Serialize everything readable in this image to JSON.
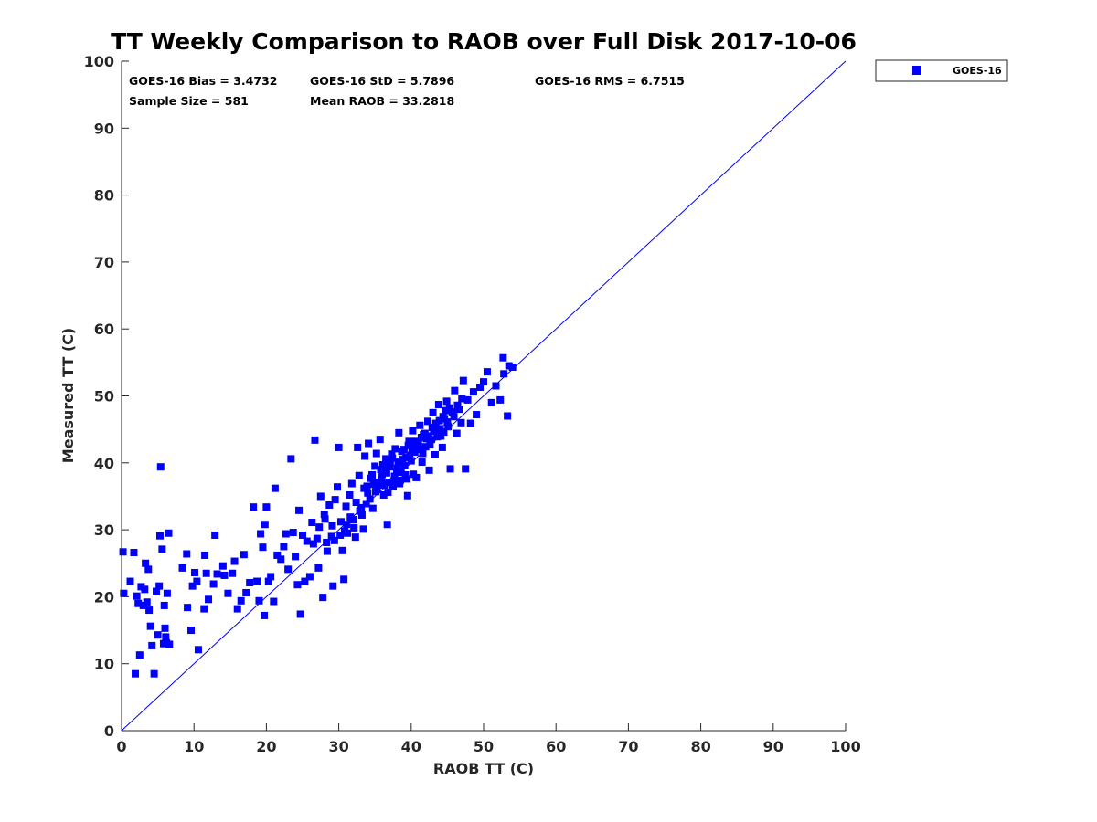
{
  "chart_data": {
    "type": "scatter",
    "title": "TT Weekly Comparison to RAOB over Full Disk 2017-10-06",
    "xlabel": "RAOB TT (C)",
    "ylabel": "Measured TT (C)",
    "xlim": [
      0,
      100
    ],
    "ylim": [
      0,
      100
    ],
    "xticks": [
      0,
      10,
      20,
      30,
      40,
      50,
      60,
      70,
      80,
      90,
      100
    ],
    "yticks": [
      0,
      10,
      20,
      30,
      40,
      50,
      60,
      70,
      80,
      90,
      100
    ],
    "grid": false,
    "legend_position": "outside-top-right",
    "reference_line": {
      "from": [
        0,
        0
      ],
      "to": [
        100,
        100
      ],
      "color": "#0000ff"
    },
    "stats": {
      "bias": "GOES-16 Bias = 3.4732",
      "std": "GOES-16 StD = 5.7896",
      "rms": "GOES-16 RMS = 6.7515",
      "sample_size": "Sample Size = 581",
      "mean_raob": "Mean RAOB = 33.2818"
    },
    "series": [
      {
        "name": "GOES-16",
        "color": "#0000ff",
        "marker": "square",
        "points": [
          [
            0.2,
            26.7
          ],
          [
            0.3,
            20.5
          ],
          [
            1.2,
            22.3
          ],
          [
            1.7,
            26.6
          ],
          [
            1.9,
            8.5
          ],
          [
            2.1,
            20.1
          ],
          [
            2.3,
            19.0
          ],
          [
            2.5,
            11.3
          ],
          [
            2.7,
            21.5
          ],
          [
            3.0,
            18.7
          ],
          [
            3.2,
            21.1
          ],
          [
            3.3,
            25.0
          ],
          [
            3.5,
            19.2
          ],
          [
            3.7,
            24.1
          ],
          [
            3.8,
            18.0
          ],
          [
            4.0,
            15.6
          ],
          [
            4.2,
            12.7
          ],
          [
            4.5,
            8.5
          ],
          [
            4.8,
            20.8
          ],
          [
            5.0,
            14.3
          ],
          [
            5.2,
            21.6
          ],
          [
            5.3,
            29.1
          ],
          [
            5.4,
            39.4
          ],
          [
            5.6,
            27.1
          ],
          [
            5.8,
            13.0
          ],
          [
            5.9,
            18.7
          ],
          [
            6.0,
            15.3
          ],
          [
            6.1,
            14.0
          ],
          [
            6.2,
            13.1
          ],
          [
            6.3,
            20.5
          ],
          [
            6.6,
            12.9
          ],
          [
            6.5,
            29.5
          ],
          [
            8.4,
            24.3
          ],
          [
            9.0,
            26.4
          ],
          [
            9.1,
            18.4
          ],
          [
            9.6,
            15.0
          ],
          [
            9.8,
            21.6
          ],
          [
            10.1,
            23.6
          ],
          [
            10.4,
            22.3
          ],
          [
            10.6,
            12.1
          ],
          [
            11.4,
            18.2
          ],
          [
            11.5,
            26.2
          ],
          [
            11.7,
            23.5
          ],
          [
            12.0,
            19.6
          ],
          [
            12.7,
            21.9
          ],
          [
            12.9,
            29.2
          ],
          [
            13.2,
            23.4
          ],
          [
            14.0,
            24.6
          ],
          [
            14.2,
            23.2
          ],
          [
            14.7,
            20.5
          ],
          [
            15.3,
            23.5
          ],
          [
            15.6,
            25.3
          ],
          [
            16.0,
            18.2
          ],
          [
            16.5,
            19.4
          ],
          [
            16.9,
            26.3
          ],
          [
            17.2,
            20.6
          ],
          [
            17.7,
            22.1
          ],
          [
            18.2,
            33.4
          ],
          [
            18.7,
            22.3
          ],
          [
            19.0,
            19.4
          ],
          [
            19.2,
            29.4
          ],
          [
            19.5,
            27.4
          ],
          [
            19.7,
            17.2
          ],
          [
            19.8,
            30.8
          ],
          [
            20.0,
            33.4
          ],
          [
            20.3,
            22.3
          ],
          [
            20.6,
            23.0
          ],
          [
            21.0,
            19.3
          ],
          [
            21.2,
            36.2
          ],
          [
            21.5,
            26.2
          ],
          [
            22.0,
            25.6
          ],
          [
            22.4,
            27.5
          ],
          [
            22.7,
            29.4
          ],
          [
            23.0,
            24.1
          ],
          [
            23.4,
            40.6
          ],
          [
            23.7,
            29.6
          ],
          [
            24.0,
            26.0
          ],
          [
            24.3,
            21.8
          ],
          [
            24.5,
            32.9
          ],
          [
            24.7,
            17.4
          ],
          [
            25.0,
            29.2
          ],
          [
            25.3,
            22.3
          ],
          [
            25.6,
            28.3
          ],
          [
            26.0,
            23.0
          ],
          [
            26.3,
            31.1
          ],
          [
            26.7,
            43.4
          ],
          [
            27.0,
            28.7
          ],
          [
            27.2,
            24.3
          ],
          [
            27.5,
            35.0
          ],
          [
            27.8,
            19.9
          ],
          [
            28.1,
            31.6
          ],
          [
            28.4,
            26.8
          ],
          [
            28.7,
            33.7
          ],
          [
            29.0,
            29.0
          ],
          [
            29.2,
            21.6
          ],
          [
            29.5,
            34.5
          ],
          [
            29.8,
            36.4
          ],
          [
            30.0,
            42.3
          ],
          [
            30.3,
            31.2
          ],
          [
            30.5,
            26.9
          ],
          [
            30.7,
            22.6
          ],
          [
            31.0,
            33.5
          ],
          [
            31.2,
            29.5
          ],
          [
            31.5,
            35.2
          ],
          [
            31.8,
            36.9
          ],
          [
            32.0,
            31.5
          ],
          [
            32.3,
            28.9
          ],
          [
            32.6,
            42.3
          ],
          [
            32.8,
            38.1
          ],
          [
            33.1,
            33.3
          ],
          [
            33.4,
            30.1
          ],
          [
            33.6,
            41.0
          ],
          [
            33.9,
            36.5
          ],
          [
            34.1,
            42.9
          ],
          [
            34.3,
            34.6
          ],
          [
            34.6,
            38.2
          ],
          [
            34.8,
            36.8
          ],
          [
            35.0,
            39.5
          ],
          [
            35.2,
            41.4
          ],
          [
            35.5,
            37.0
          ],
          [
            35.7,
            43.5
          ],
          [
            36.0,
            38.3
          ],
          [
            36.2,
            35.2
          ],
          [
            36.5,
            40.6
          ],
          [
            36.7,
            30.8
          ],
          [
            37.0,
            39.4
          ],
          [
            37.3,
            41.3
          ],
          [
            37.5,
            36.5
          ],
          [
            37.8,
            42.1
          ],
          [
            38.0,
            38.8
          ],
          [
            38.3,
            44.5
          ],
          [
            38.5,
            37.4
          ],
          [
            38.8,
            40.5
          ],
          [
            39.0,
            42.0
          ],
          [
            39.2,
            38.2
          ],
          [
            39.5,
            35.1
          ],
          [
            39.7,
            43.2
          ],
          [
            40.0,
            40.3
          ],
          [
            40.2,
            44.8
          ],
          [
            40.5,
            41.6
          ],
          [
            40.7,
            37.8
          ],
          [
            41.0,
            43.0
          ],
          [
            41.2,
            45.6
          ],
          [
            41.5,
            40.1
          ],
          [
            41.7,
            44.2
          ],
          [
            42.0,
            42.4
          ],
          [
            42.3,
            46.2
          ],
          [
            42.5,
            38.9
          ],
          [
            42.8,
            43.5
          ],
          [
            43.0,
            47.5
          ],
          [
            43.3,
            41.2
          ],
          [
            43.6,
            45.0
          ],
          [
            43.8,
            48.7
          ],
          [
            44.1,
            44.0
          ],
          [
            44.3,
            42.3
          ],
          [
            44.6,
            46.6
          ],
          [
            44.9,
            49.2
          ],
          [
            45.1,
            45.4
          ],
          [
            45.4,
            39.1
          ],
          [
            45.7,
            47.6
          ],
          [
            46.0,
            50.8
          ],
          [
            46.3,
            44.4
          ],
          [
            46.6,
            48.0
          ],
          [
            46.9,
            46.0
          ],
          [
            47.2,
            52.3
          ],
          [
            47.5,
            39.1
          ],
          [
            47.8,
            49.4
          ],
          [
            48.2,
            45.9
          ],
          [
            48.6,
            50.6
          ],
          [
            49.0,
            47.2
          ],
          [
            49.5,
            51.3
          ],
          [
            50.0,
            52.1
          ],
          [
            50.5,
            53.6
          ],
          [
            51.1,
            49.0
          ],
          [
            51.7,
            51.5
          ],
          [
            52.3,
            49.4
          ],
          [
            52.8,
            53.3
          ],
          [
            52.7,
            55.7
          ],
          [
            53.3,
            47.0
          ],
          [
            53.5,
            54.5
          ],
          [
            54.0,
            54.3
          ],
          [
            28.0,
            32.3
          ],
          [
            29.1,
            30.6
          ],
          [
            30.8,
            29.8
          ],
          [
            31.6,
            31.9
          ],
          [
            32.4,
            34.1
          ],
          [
            33.2,
            32.2
          ],
          [
            34.0,
            35.5
          ],
          [
            34.9,
            37.1
          ],
          [
            35.3,
            36.0
          ],
          [
            35.9,
            37.6
          ],
          [
            36.6,
            38.5
          ],
          [
            37.1,
            39.9
          ],
          [
            37.7,
            38.0
          ],
          [
            38.2,
            40.1
          ],
          [
            38.7,
            41.7
          ],
          [
            39.3,
            40.8
          ],
          [
            39.8,
            41.1
          ],
          [
            40.4,
            42.4
          ],
          [
            40.9,
            42.9
          ],
          [
            41.4,
            43.8
          ],
          [
            41.9,
            44.4
          ],
          [
            42.4,
            44.0
          ],
          [
            42.9,
            45.3
          ],
          [
            43.4,
            45.9
          ],
          [
            43.9,
            46.3
          ],
          [
            44.4,
            46.9
          ],
          [
            44.8,
            47.8
          ],
          [
            45.3,
            48.2
          ],
          [
            45.9,
            46.9
          ],
          [
            46.4,
            48.6
          ],
          [
            47.0,
            49.6
          ],
          [
            36.1,
            39.7
          ],
          [
            36.9,
            37.1
          ],
          [
            37.4,
            40.7
          ],
          [
            38.1,
            39.2
          ],
          [
            38.6,
            38.6
          ],
          [
            39.1,
            39.6
          ],
          [
            39.6,
            42.6
          ],
          [
            40.1,
            41.9
          ],
          [
            40.6,
            43.2
          ],
          [
            41.1,
            42.0
          ],
          [
            41.6,
            41.4
          ],
          [
            42.1,
            43.6
          ],
          [
            42.6,
            42.7
          ],
          [
            43.1,
            44.7
          ],
          [
            43.6,
            43.9
          ],
          [
            44.0,
            45.1
          ],
          [
            44.5,
            44.6
          ],
          [
            45.0,
            46.1
          ],
          [
            33.5,
            36.2
          ],
          [
            34.4,
            37.7
          ],
          [
            35.1,
            35.7
          ],
          [
            35.8,
            39.0
          ],
          [
            36.3,
            36.7
          ],
          [
            36.8,
            35.6
          ],
          [
            37.6,
            37.3
          ],
          [
            38.4,
            36.9
          ],
          [
            39.4,
            37.6
          ],
          [
            40.3,
            38.3
          ],
          [
            26.5,
            27.9
          ],
          [
            27.3,
            30.4
          ],
          [
            28.3,
            28.1
          ],
          [
            29.4,
            28.4
          ],
          [
            30.2,
            29.2
          ],
          [
            31.1,
            30.8
          ],
          [
            32.1,
            30.3
          ],
          [
            32.9,
            32.8
          ],
          [
            33.8,
            33.9
          ],
          [
            34.7,
            33.2
          ]
        ]
      }
    ]
  }
}
